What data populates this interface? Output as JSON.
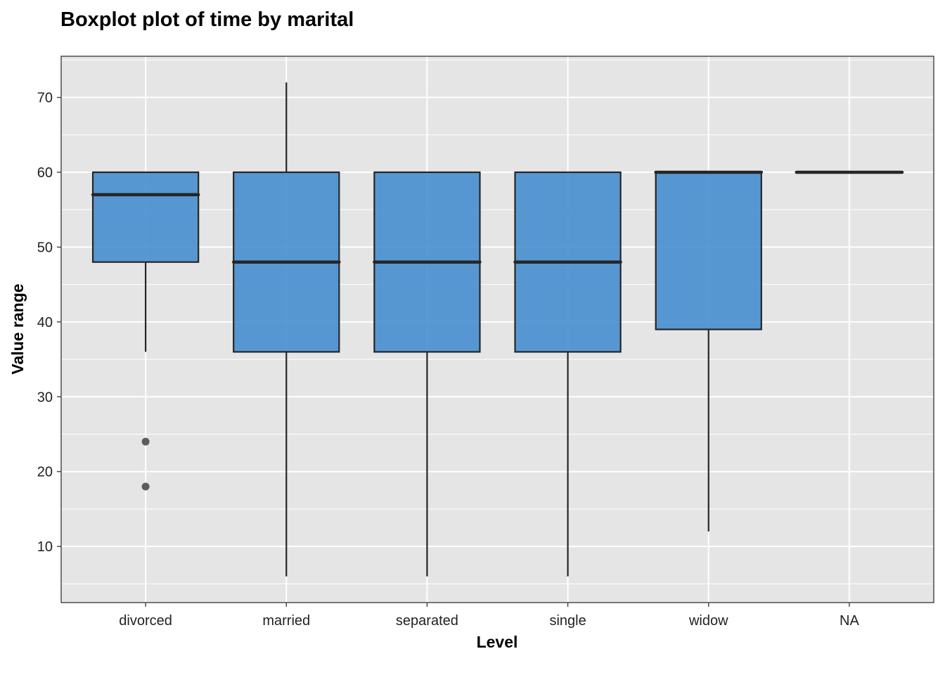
{
  "chart_data": {
    "type": "boxplot",
    "title": "Boxplot plot of time by marital",
    "xlabel": "Level",
    "ylabel": "Value range",
    "ylim": [
      2.5,
      75.5
    ],
    "yticks": [
      10,
      20,
      30,
      40,
      50,
      60,
      70
    ],
    "grid": true,
    "categories": [
      "divorced",
      "married",
      "separated",
      "single",
      "widow",
      "NA"
    ],
    "boxes": [
      {
        "category": "divorced",
        "whisker_low": 36,
        "q1": 48,
        "median": 57,
        "q3": 60,
        "whisker_high": 60,
        "outliers": [
          24,
          18
        ]
      },
      {
        "category": "married",
        "whisker_low": 6,
        "q1": 36,
        "median": 48,
        "q3": 60,
        "whisker_high": 72,
        "outliers": []
      },
      {
        "category": "separated",
        "whisker_low": 6,
        "q1": 36,
        "median": 48,
        "q3": 60,
        "whisker_high": 60,
        "outliers": []
      },
      {
        "category": "single",
        "whisker_low": 6,
        "q1": 36,
        "median": 48,
        "q3": 60,
        "whisker_high": 60,
        "outliers": []
      },
      {
        "category": "widow",
        "whisker_low": 12,
        "q1": 39,
        "median": 60,
        "q3": 60,
        "whisker_high": 60,
        "outliers": []
      },
      {
        "category": "NA",
        "whisker_low": 60,
        "q1": 60,
        "median": 60,
        "q3": 60,
        "whisker_high": 60,
        "outliers": []
      }
    ],
    "colors": {
      "box_fill": "#4A90D0",
      "panel_bg": "#E5E5E5",
      "grid": "#FFFFFF",
      "line": "#262626",
      "outlier": "#4D4D4D"
    }
  }
}
